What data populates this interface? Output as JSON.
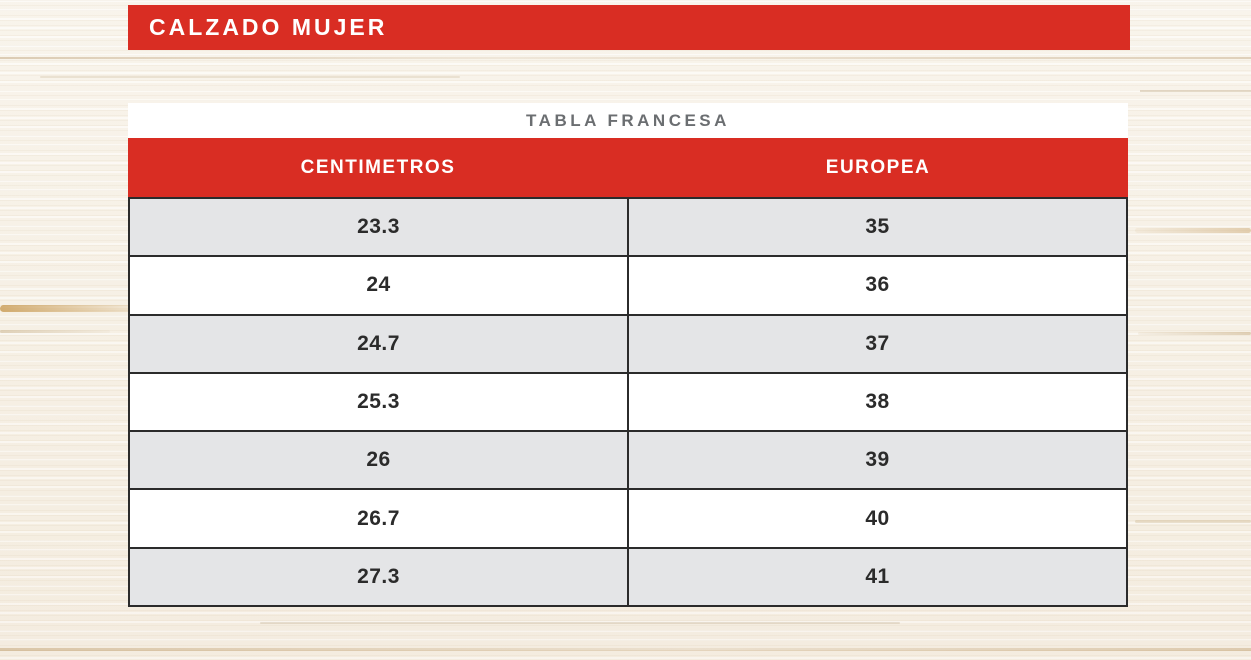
{
  "banner": {
    "title": "CALZADO MUJER"
  },
  "chart_data": {
    "type": "table",
    "title": "TABLA FRANCESA",
    "columns": [
      "CENTIMETROS",
      "EUROPEA"
    ],
    "rows": [
      [
        "23.3",
        "35"
      ],
      [
        "24",
        "36"
      ],
      [
        "24.7",
        "37"
      ],
      [
        "25.3",
        "38"
      ],
      [
        "26",
        "39"
      ],
      [
        "26.7",
        "40"
      ],
      [
        "27.3",
        "41"
      ]
    ]
  },
  "colors": {
    "accent_red": "#d92d23",
    "row_alt_gray": "#e4e5e7",
    "border_dark": "#2b2b2b",
    "title_gray": "#6b6e71",
    "wood_base": "#faf6ef"
  }
}
